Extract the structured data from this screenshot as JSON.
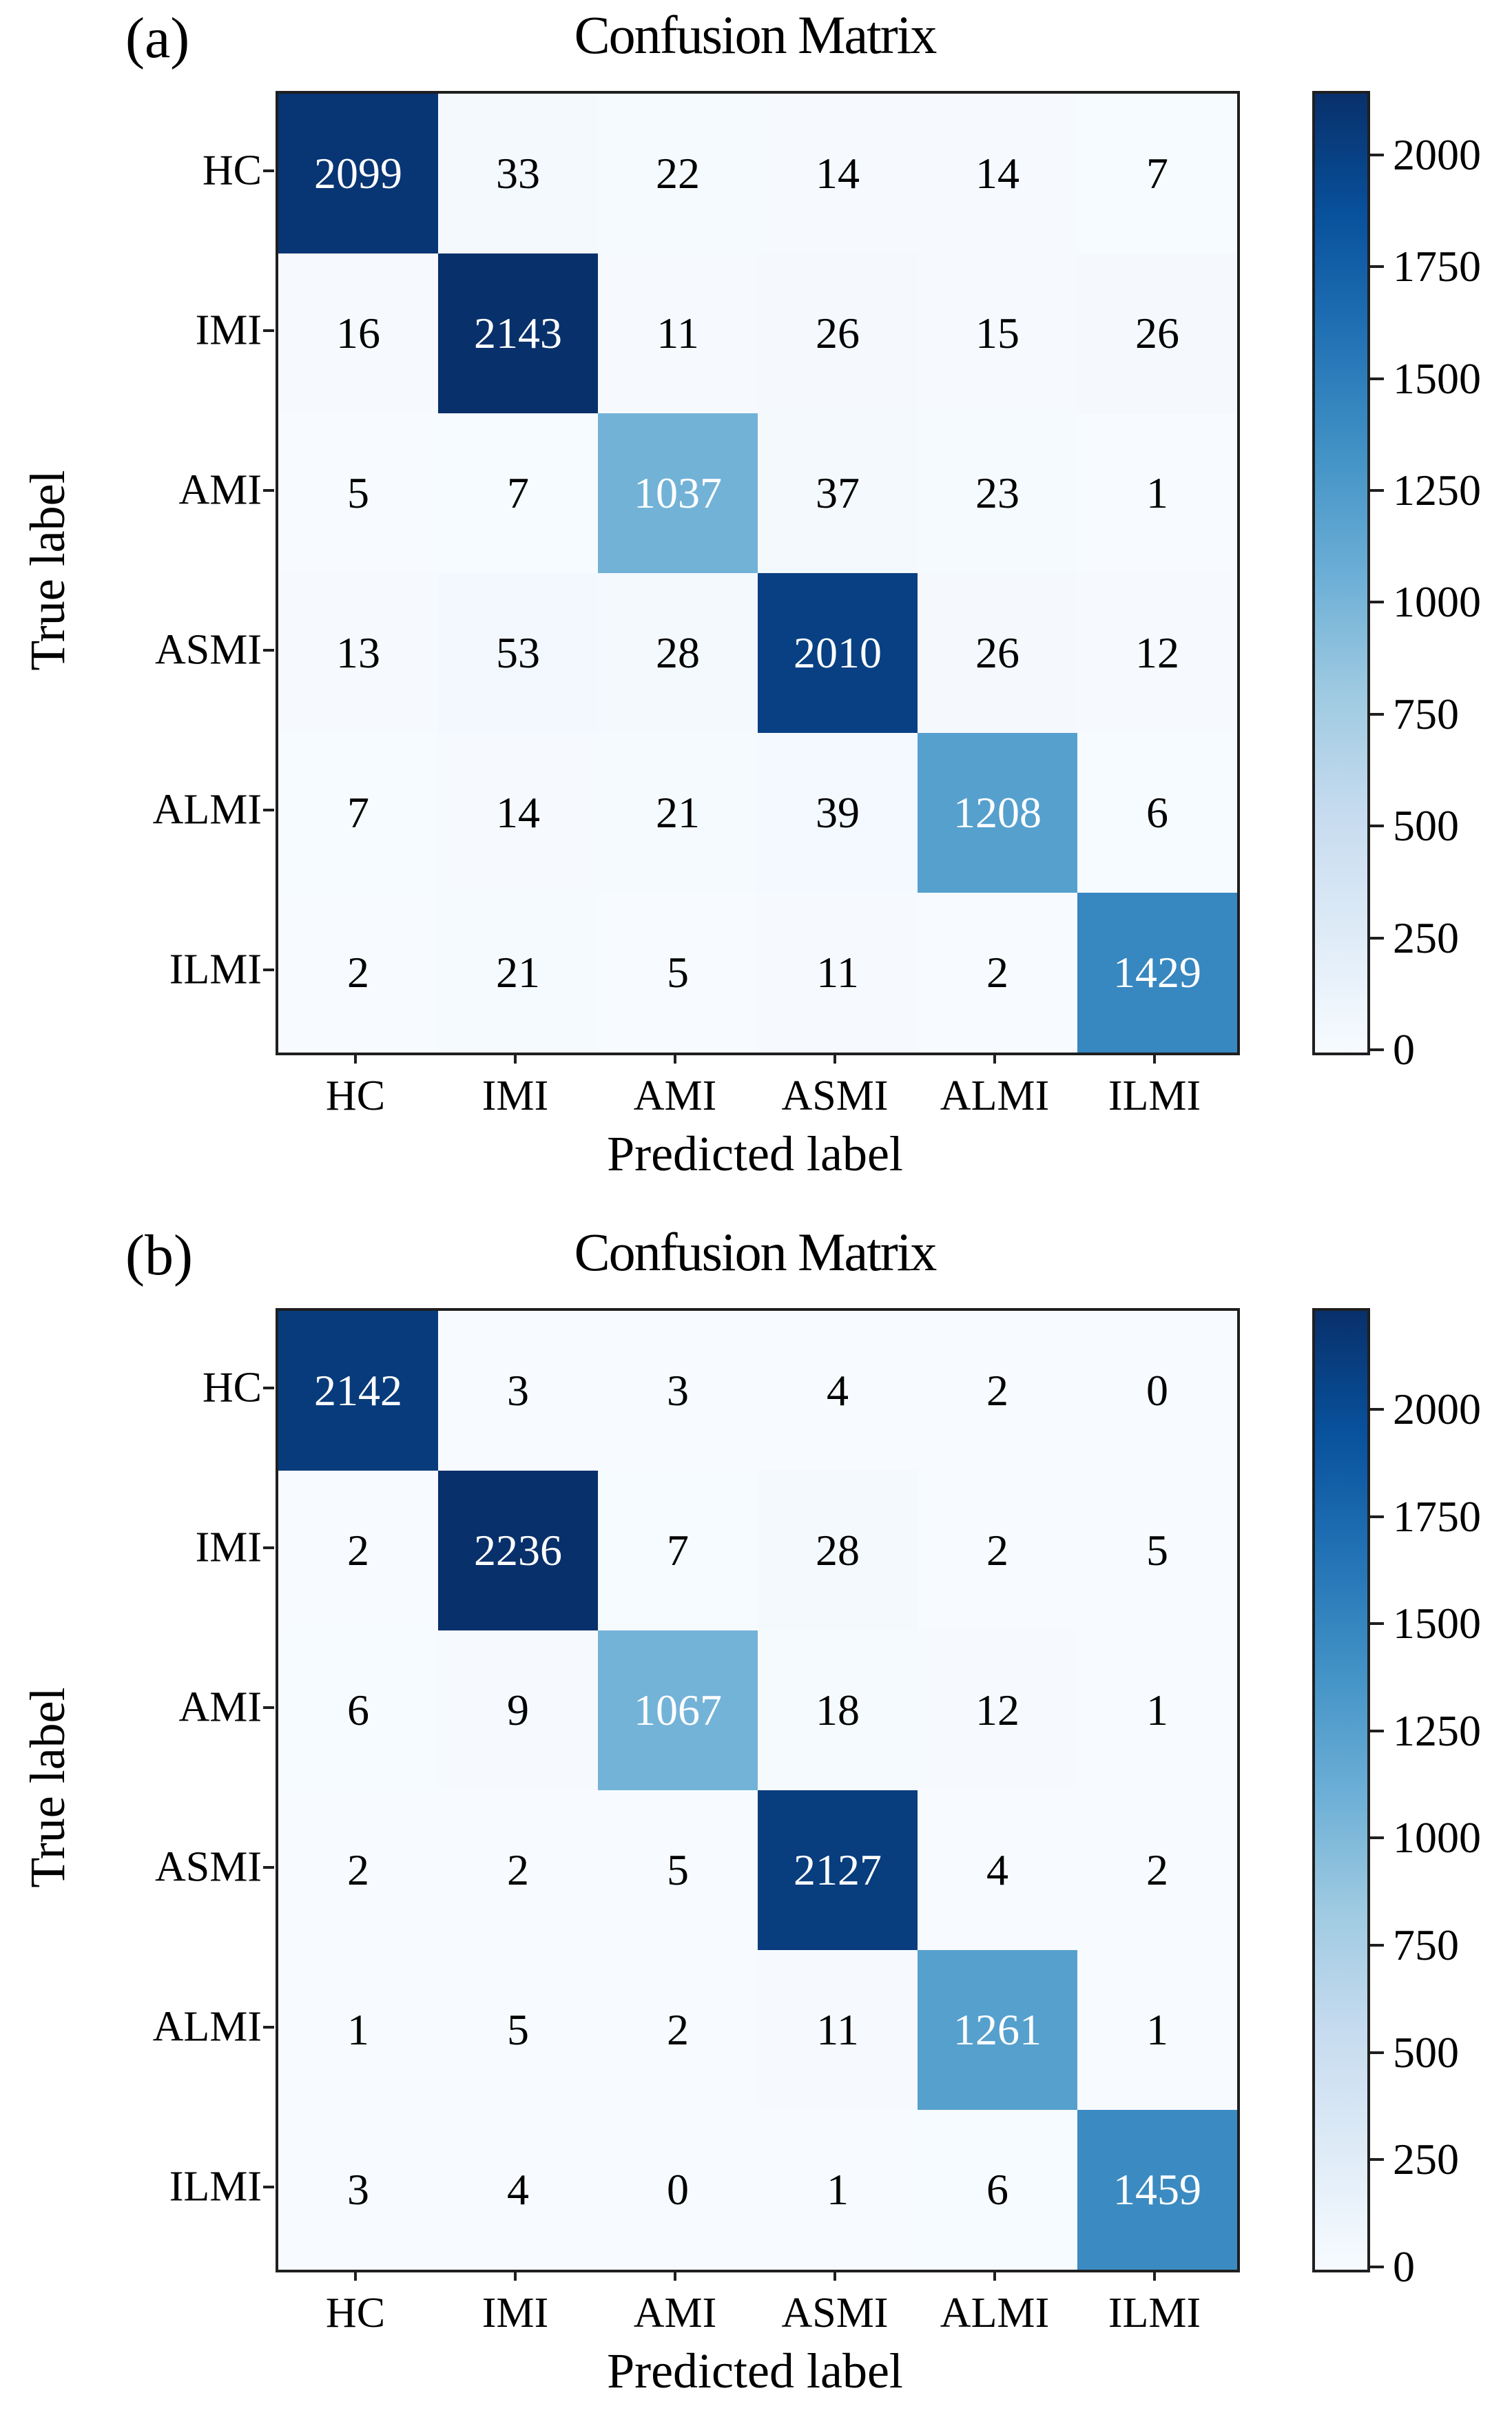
{
  "page": {
    "background": "#ffffff",
    "text_color": "#000000",
    "axis_color": "#1f1f1f"
  },
  "colormap": {
    "name": "Blues",
    "stops": [
      "#f7fbff",
      "#deebf7",
      "#c6dbef",
      "#9ecae1",
      "#6baed6",
      "#4292c6",
      "#2171b5",
      "#08519c",
      "#08306b"
    ],
    "white_text_threshold": 0.45
  },
  "chart_data": [
    {
      "type": "heatmap",
      "panel_tag": "(a)",
      "title": "Confusion Matrix",
      "xlabel": "Predicted label",
      "ylabel": "True label",
      "categories": [
        "HC",
        "IMI",
        "AMI",
        "ASMI",
        "ALMI",
        "ILMI"
      ],
      "matrix": [
        [
          2099,
          33,
          22,
          14,
          14,
          7
        ],
        [
          16,
          2143,
          11,
          26,
          15,
          26
        ],
        [
          5,
          7,
          1037,
          37,
          23,
          1
        ],
        [
          13,
          53,
          28,
          2010,
          26,
          12
        ],
        [
          7,
          14,
          21,
          39,
          1208,
          6
        ],
        [
          2,
          21,
          5,
          11,
          2,
          1429
        ]
      ],
      "vmin": 0,
      "vmax": 2143,
      "colorbar_ticks": [
        2000,
        1750,
        1500,
        1250,
        1000,
        750,
        500,
        250,
        0
      ],
      "legend_position": "right",
      "grid": false
    },
    {
      "type": "heatmap",
      "panel_tag": "(b)",
      "title": "Confusion Matrix",
      "xlabel": "Predicted label",
      "ylabel": "True label",
      "categories": [
        "HC",
        "IMI",
        "AMI",
        "ASMI",
        "ALMI",
        "ILMI"
      ],
      "matrix": [
        [
          2142,
          3,
          3,
          4,
          2,
          0
        ],
        [
          2,
          2236,
          7,
          28,
          2,
          5
        ],
        [
          6,
          9,
          1067,
          18,
          12,
          1
        ],
        [
          2,
          2,
          5,
          2127,
          4,
          2
        ],
        [
          1,
          5,
          2,
          11,
          1261,
          1
        ],
        [
          3,
          4,
          0,
          1,
          6,
          1459
        ]
      ],
      "vmin": 0,
      "vmax": 2236,
      "colorbar_ticks": [
        2000,
        1750,
        1500,
        1250,
        1000,
        750,
        500,
        250,
        0
      ],
      "legend_position": "right",
      "grid": false
    }
  ]
}
